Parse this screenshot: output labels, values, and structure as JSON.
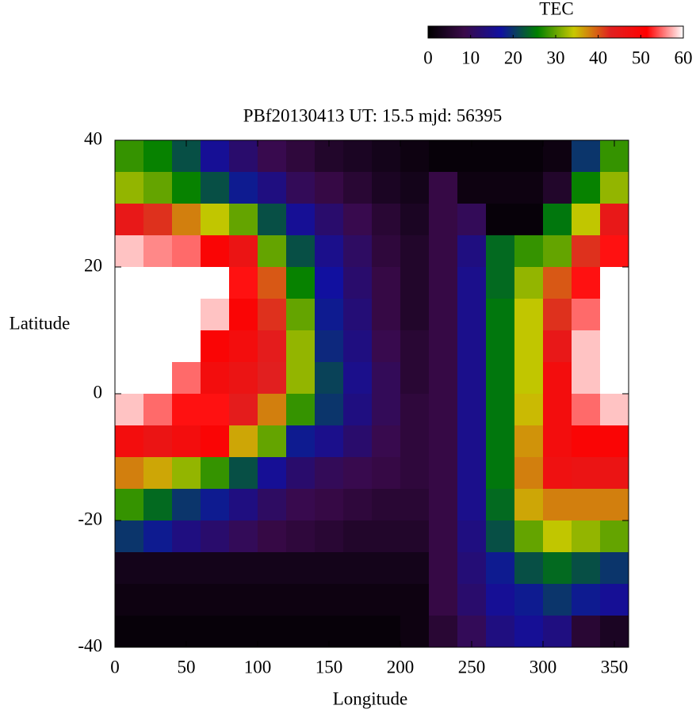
{
  "chart_data": {
    "type": "heatmap",
    "title": "PBf20130413  UT: 15.5  mjd: 56395",
    "x_label": "Longitude",
    "y_label": "Latitude",
    "colorbar_label": "TEC",
    "xlim": [
      0,
      360
    ],
    "ylim": [
      -40,
      40
    ],
    "xticks": [
      0,
      50,
      100,
      150,
      200,
      250,
      300,
      350
    ],
    "yticks": [
      -40,
      -20,
      0,
      20,
      40
    ],
    "clim": [
      0,
      60
    ],
    "cticks": [
      0,
      10,
      20,
      30,
      40,
      50,
      60
    ],
    "colorscale": [
      "#000000",
      "#3a0a4a",
      "#1010a0",
      "#008000",
      "#c8c800",
      "#e02020",
      "#ff0000",
      "#ffffff"
    ],
    "grid": false,
    "x": [
      0,
      20,
      40,
      60,
      80,
      100,
      120,
      140,
      160,
      180,
      200,
      220,
      240,
      260,
      280,
      300,
      320,
      340
    ],
    "y": [
      35,
      30,
      25,
      20,
      15,
      10,
      5,
      0,
      -5,
      -10,
      -15,
      -20,
      -25,
      -30,
      -35,
      -40
    ],
    "values": [
      [
        28,
        26,
        22,
        16,
        12,
        9,
        7,
        5,
        4,
        3,
        2,
        1,
        1,
        1,
        1,
        2,
        20,
        28
      ],
      [
        32,
        30,
        26,
        22,
        18,
        14,
        10,
        8,
        6,
        4,
        3,
        8,
        2,
        2,
        2,
        5,
        26,
        32
      ],
      [
        45,
        42,
        38,
        34,
        30,
        22,
        16,
        12,
        9,
        6,
        4,
        8,
        10,
        1,
        1,
        25,
        34,
        45
      ],
      [
        58,
        56,
        55,
        50,
        46,
        30,
        22,
        15,
        11,
        7,
        5,
        8,
        14,
        24,
        28,
        30,
        42,
        52
      ],
      [
        60,
        60,
        60,
        60,
        52,
        40,
        26,
        17,
        12,
        8,
        5,
        8,
        15,
        24,
        32,
        40,
        52,
        60
      ],
      [
        60,
        60,
        60,
        58,
        50,
        42,
        30,
        18,
        13,
        8,
        5,
        8,
        15,
        25,
        34,
        42,
        55,
        60
      ],
      [
        60,
        60,
        60,
        50,
        48,
        44,
        32,
        19,
        14,
        9,
        6,
        8,
        15,
        25,
        34,
        45,
        58,
        60
      ],
      [
        60,
        60,
        55,
        48,
        46,
        43,
        32,
        21,
        15,
        10,
        6,
        8,
        15,
        25,
        34,
        48,
        58,
        60
      ],
      [
        58,
        55,
        52,
        52,
        44,
        38,
        28,
        20,
        14,
        10,
        7,
        8,
        15,
        25,
        35,
        48,
        55,
        58
      ],
      [
        48,
        46,
        48,
        50,
        36,
        30,
        18,
        15,
        12,
        9,
        7,
        8,
        15,
        25,
        37,
        48,
        50,
        50
      ],
      [
        38,
        36,
        32,
        28,
        22,
        16,
        12,
        10,
        9,
        8,
        7,
        8,
        15,
        25,
        38,
        47,
        46,
        46
      ],
      [
        28,
        24,
        20,
        18,
        14,
        11,
        9,
        8,
        7,
        6,
        6,
        8,
        15,
        24,
        36,
        38,
        38,
        38
      ],
      [
        20,
        18,
        14,
        12,
        10,
        8,
        7,
        6,
        5,
        5,
        5,
        8,
        14,
        22,
        30,
        34,
        32,
        30
      ],
      [
        3,
        3,
        3,
        3,
        3,
        3,
        3,
        3,
        3,
        3,
        3,
        8,
        13,
        18,
        22,
        24,
        22,
        20
      ],
      [
        2,
        2,
        2,
        2,
        2,
        2,
        2,
        2,
        2,
        2,
        2,
        8,
        12,
        16,
        18,
        20,
        18,
        16
      ],
      [
        1,
        1,
        1,
        1,
        1,
        1,
        1,
        1,
        1,
        1,
        2,
        6,
        10,
        14,
        16,
        14,
        6,
        4
      ]
    ]
  }
}
